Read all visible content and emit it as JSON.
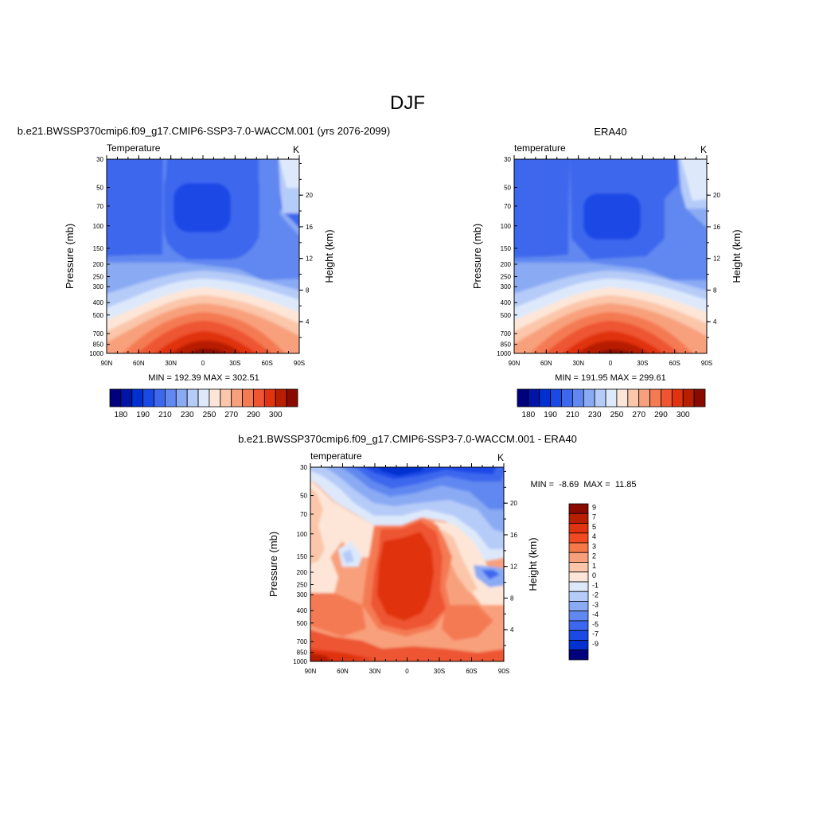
{
  "page_title": "DJF",
  "chart_data": [
    {
      "type": "heatmap",
      "title": "b.e21.BWSSP370cmip6.f09_g17.CMIP6-SSP3-7.0-WACCM.001 (yrs 2076-2099)",
      "variable_label": "Temperature",
      "units_label": "K",
      "xlabel": "",
      "ylabel": "Pressure (mb)",
      "ylabel_right": "Height (km)",
      "x_ticks": [
        "90N",
        "60N",
        "30N",
        "0",
        "30S",
        "60S",
        "90S"
      ],
      "y_ticks": [
        30,
        50,
        70,
        100,
        150,
        200,
        250,
        300,
        400,
        500,
        700,
        850,
        1000
      ],
      "y_right_ticks": [
        4,
        8,
        12,
        16,
        20
      ],
      "ylim": [
        1000,
        30
      ],
      "y_scale": "log",
      "stats_text": "MIN = 192.39  MAX = 302.51",
      "min": 192.39,
      "max": 302.51,
      "colorbar": {
        "orientation": "horizontal",
        "labels": [
          "180",
          "190",
          "210",
          "230",
          "250",
          "270",
          "290",
          "300"
        ],
        "colors": [
          "#00007f",
          "#0015a8",
          "#0030d0",
          "#1a4ae6",
          "#3d68ee",
          "#6188f0",
          "#8aaaf4",
          "#b5cbf8",
          "#dde9fb",
          "#fde6d7",
          "#fbc6aa",
          "#f8a07c",
          "#f47a52",
          "#ee5530",
          "#e0330f",
          "#b81f00",
          "#8a0a00"
        ]
      }
    },
    {
      "type": "heatmap",
      "title": "ERA40",
      "variable_label": "temperature",
      "units_label": "K",
      "xlabel": "",
      "ylabel": "Pressure (mb)",
      "ylabel_right": "Height (km)",
      "x_ticks": [
        "90N",
        "60N",
        "30N",
        "0",
        "30S",
        "60S",
        "90S"
      ],
      "y_ticks": [
        30,
        50,
        70,
        100,
        150,
        200,
        250,
        300,
        400,
        500,
        700,
        850,
        1000
      ],
      "y_right_ticks": [
        4,
        8,
        12,
        16,
        20
      ],
      "ylim": [
        1000,
        30
      ],
      "y_scale": "log",
      "stats_text": "MIN = 191.95  MAX = 299.61",
      "min": 191.95,
      "max": 299.61,
      "colorbar": {
        "orientation": "horizontal",
        "labels": [
          "180",
          "190",
          "210",
          "230",
          "250",
          "270",
          "290",
          "300"
        ],
        "colors": [
          "#00007f",
          "#0015a8",
          "#0030d0",
          "#1a4ae6",
          "#3d68ee",
          "#6188f0",
          "#8aaaf4",
          "#b5cbf8",
          "#dde9fb",
          "#fde6d7",
          "#fbc6aa",
          "#f8a07c",
          "#f47a52",
          "#ee5530",
          "#e0330f",
          "#b81f00",
          "#8a0a00"
        ]
      }
    },
    {
      "type": "heatmap",
      "title": "b.e21.BWSSP370cmip6.f09_g17.CMIP6-SSP3-7.0-WACCM.001 - ERA40",
      "variable_label": "temperature",
      "units_label": "K",
      "xlabel": "",
      "ylabel": "Pressure (mb)",
      "ylabel_right": "Height (km)",
      "x_ticks": [
        "90N",
        "60N",
        "30N",
        "0",
        "30S",
        "60S",
        "90S"
      ],
      "y_ticks": [
        30,
        50,
        70,
        100,
        150,
        200,
        250,
        300,
        400,
        500,
        700,
        850,
        1000
      ],
      "y_right_ticks": [
        4,
        8,
        12,
        16,
        20
      ],
      "ylim": [
        1000,
        30
      ],
      "y_scale": "log",
      "stats_text": "MIN =  -8.69  MAX =  11.85",
      "min": -8.69,
      "max": 11.85,
      "colorbar": {
        "orientation": "vertical",
        "labels": [
          "9",
          "7",
          "5",
          "4",
          "3",
          "2",
          "1",
          "0",
          "-1",
          "-2",
          "-3",
          "-4",
          "-5",
          "-7",
          "-9"
        ],
        "colors": [
          "#8a0a00",
          "#b81f00",
          "#e0330f",
          "#f24a20",
          "#f67848",
          "#f8a07c",
          "#fbc6aa",
          "#fde6d7",
          "#dde9fb",
          "#b5cbf8",
          "#8aaaf4",
          "#6188f0",
          "#3d68ee",
          "#1a4ae6",
          "#0030d0",
          "#00007f"
        ]
      }
    }
  ]
}
